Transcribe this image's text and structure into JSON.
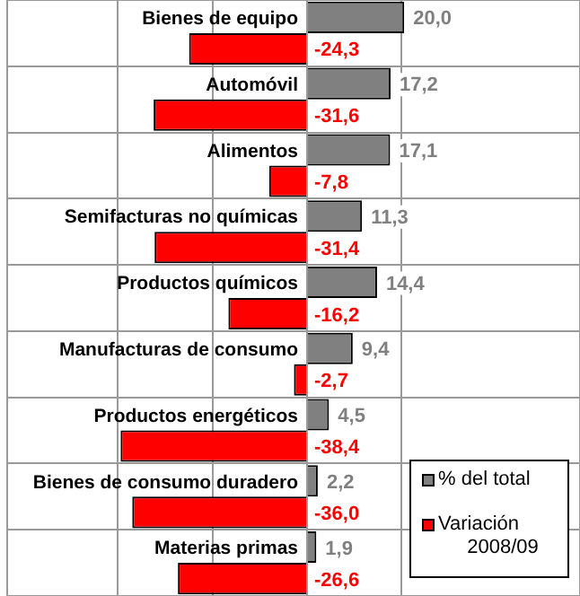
{
  "chart_data": {
    "type": "bar",
    "orientation": "horizontal",
    "categories": [
      "Bienes de equipo",
      "Automóvil",
      "Alimentos",
      "Semifacturas no químicas",
      "Productos químicos",
      "Manufacturas de consumo",
      "Productos energéticos",
      "Bienes de consumo duradero",
      "Materias primas"
    ],
    "series": [
      {
        "name": "% del total",
        "color": "#808080",
        "values": [
          20.0,
          17.2,
          17.1,
          11.3,
          14.4,
          9.4,
          4.5,
          2.2,
          1.9
        ],
        "value_labels": [
          "20,0",
          "17,2",
          "17,1",
          "11,3",
          "14,4",
          "9,4",
          "4,5",
          "2,2",
          "1,9"
        ]
      },
      {
        "name": "Variación 2008/09",
        "color": "#ff0000",
        "values": [
          -24.3,
          -31.6,
          -7.8,
          -31.4,
          -16.2,
          -2.7,
          -38.4,
          -36.0,
          -26.6
        ],
        "value_labels": [
          "-24,3",
          "-31,6",
          "-7,8",
          "-31,4",
          "-16,2",
          "-2,7",
          "-38,4",
          "-36,0",
          "-26,6"
        ]
      }
    ],
    "grid": true,
    "legend": "bottom right",
    "tick_labels": "y"
  }
}
